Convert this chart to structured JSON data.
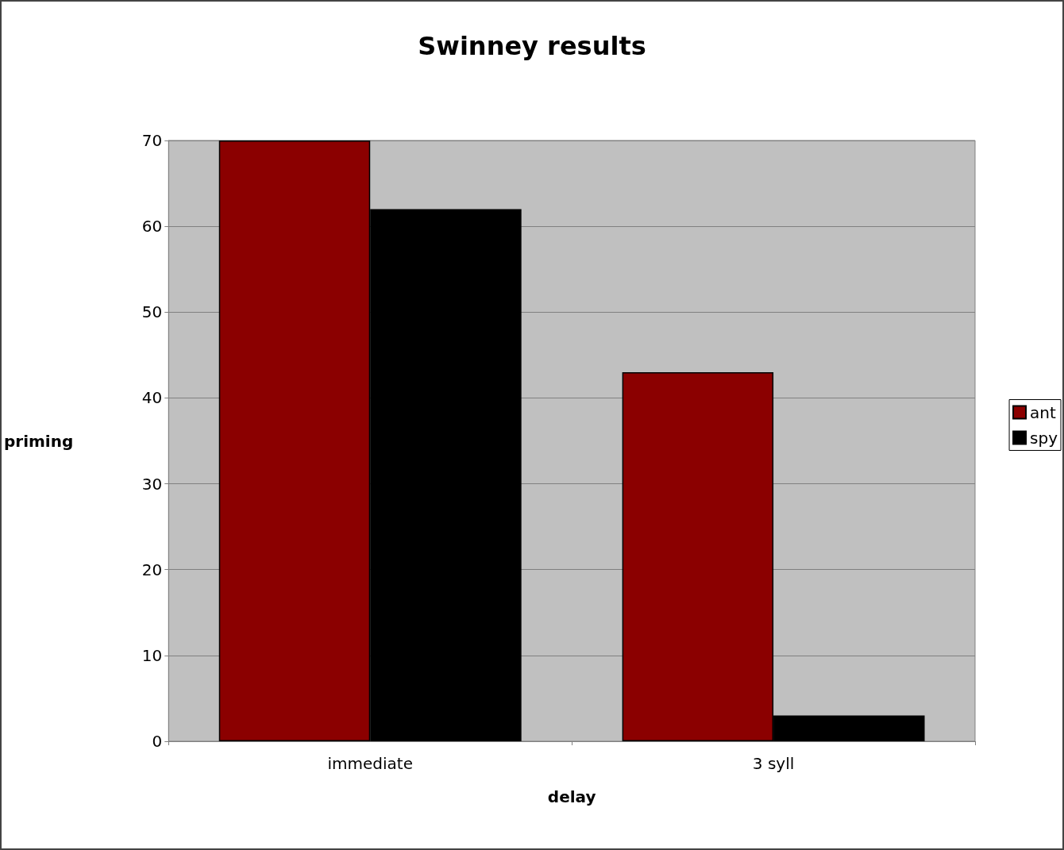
{
  "chart_data": {
    "type": "bar",
    "title": "Swinney results",
    "xlabel": "delay",
    "ylabel": "priming",
    "categories": [
      "immediate",
      "3 syll"
    ],
    "series": [
      {
        "name": "ant",
        "color": "#8b0000",
        "values": [
          70,
          43
        ]
      },
      {
        "name": "spy",
        "color": "#000000",
        "values": [
          62,
          3
        ]
      }
    ],
    "ylim": [
      0,
      70
    ],
    "yticks": [
      0,
      10,
      20,
      30,
      40,
      50,
      60,
      70
    ],
    "grid": "y",
    "legend": "right"
  }
}
